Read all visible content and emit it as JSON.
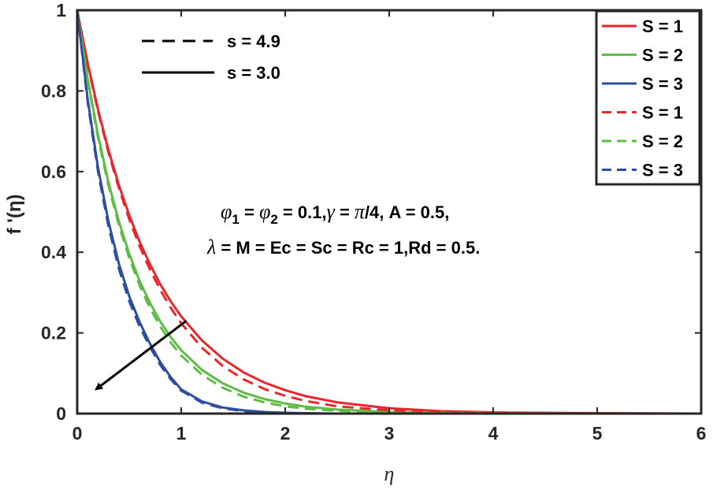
{
  "chart_data": {
    "type": "line",
    "title": "",
    "xlabel": "η",
    "ylabel": "f '(η)",
    "xlim": [
      0,
      6
    ],
    "ylim": [
      0,
      1
    ],
    "xticks": [
      0,
      1,
      2,
      3,
      4,
      5,
      6
    ],
    "yticks": [
      0,
      0.2,
      0.4,
      0.6,
      0.8,
      1
    ],
    "ytick_labels": [
      "0",
      "0.2",
      "0.4",
      "0.6",
      "0.8",
      "1"
    ],
    "grid": false,
    "legend_position": "top-right",
    "x": [
      0,
      0.1,
      0.2,
      0.3,
      0.4,
      0.5,
      0.6,
      0.7,
      0.8,
      0.9,
      1.0,
      1.2,
      1.4,
      1.6,
      1.8,
      2.0,
      2.2,
      2.5,
      3.0,
      3.5,
      4.0,
      5.0,
      6.0
    ],
    "series": [
      {
        "name": "S = 1",
        "line_style": "solid",
        "color": "#e8262b",
        "values": [
          1.0,
          0.87,
          0.754,
          0.654,
          0.567,
          0.492,
          0.426,
          0.37,
          0.32,
          0.278,
          0.241,
          0.181,
          0.136,
          0.102,
          0.077,
          0.058,
          0.043,
          0.028,
          0.013,
          0.006,
          0.003,
          0.001,
          0.0
        ]
      },
      {
        "name": "S = 2",
        "line_style": "solid",
        "color": "#5dbb46",
        "values": [
          1.0,
          0.831,
          0.691,
          0.574,
          0.477,
          0.396,
          0.329,
          0.274,
          0.228,
          0.189,
          0.157,
          0.108,
          0.075,
          0.052,
          0.036,
          0.025,
          0.017,
          0.01,
          0.004,
          0.002,
          0.001,
          0.0,
          0.0
        ]
      },
      {
        "name": "S = 3",
        "line_style": "solid",
        "color": "#2c4da0",
        "values": [
          1.0,
          0.781,
          0.61,
          0.477,
          0.372,
          0.291,
          0.227,
          0.173,
          0.127,
          0.09,
          0.06,
          0.03,
          0.015,
          0.008,
          0.004,
          0.002,
          0.001,
          0.0,
          0.0,
          0.0,
          0.0,
          0.0,
          0.0
        ]
      },
      {
        "name": "S = 1",
        "line_style": "dashed",
        "color": "#e8262b",
        "values": [
          1.0,
          0.866,
          0.75,
          0.648,
          0.56,
          0.482,
          0.415,
          0.357,
          0.306,
          0.262,
          0.224,
          0.163,
          0.118,
          0.085,
          0.061,
          0.044,
          0.031,
          0.018,
          0.008,
          0.003,
          0.001,
          0.0,
          0.0
        ]
      },
      {
        "name": "S = 2",
        "line_style": "dashed",
        "color": "#5dbb46",
        "values": [
          1.0,
          0.826,
          0.684,
          0.566,
          0.468,
          0.386,
          0.318,
          0.262,
          0.215,
          0.176,
          0.144,
          0.096,
          0.064,
          0.042,
          0.028,
          0.018,
          0.012,
          0.007,
          0.002,
          0.001,
          0.0,
          0.0,
          0.0
        ]
      },
      {
        "name": "S = 3",
        "line_style": "dashed",
        "color": "#2c4da0",
        "values": [
          1.0,
          0.774,
          0.6,
          0.465,
          0.36,
          0.279,
          0.216,
          0.165,
          0.12,
          0.085,
          0.057,
          0.027,
          0.013,
          0.006,
          0.003,
          0.001,
          0.0,
          0.0,
          0.0,
          0.0,
          0.0,
          0.0,
          0.0
        ]
      }
    ],
    "style_legend": [
      {
        "label": "s = 4.9",
        "line_style": "dashed"
      },
      {
        "label": "s = 3.0",
        "line_style": "solid"
      }
    ],
    "annotations": {
      "line1": {
        "phi1": "φ",
        "sub1": "1",
        "eq1": " = ",
        "phi2": "φ",
        "sub2": "2",
        "rest": " = 0.1,",
        "gamma": "γ",
        "eq2": " = ",
        "pi": "π",
        "rest2": "/4, A = 0.5,"
      },
      "line2": {
        "lambda": "λ",
        "rest": " = M = Ec = Sc = Rc = 1,Rd = 0.5."
      }
    },
    "arrow": {
      "from": [
        1.05,
        0.23
      ],
      "to": [
        0.18,
        0.06
      ],
      "meaning": "increasing S"
    }
  }
}
